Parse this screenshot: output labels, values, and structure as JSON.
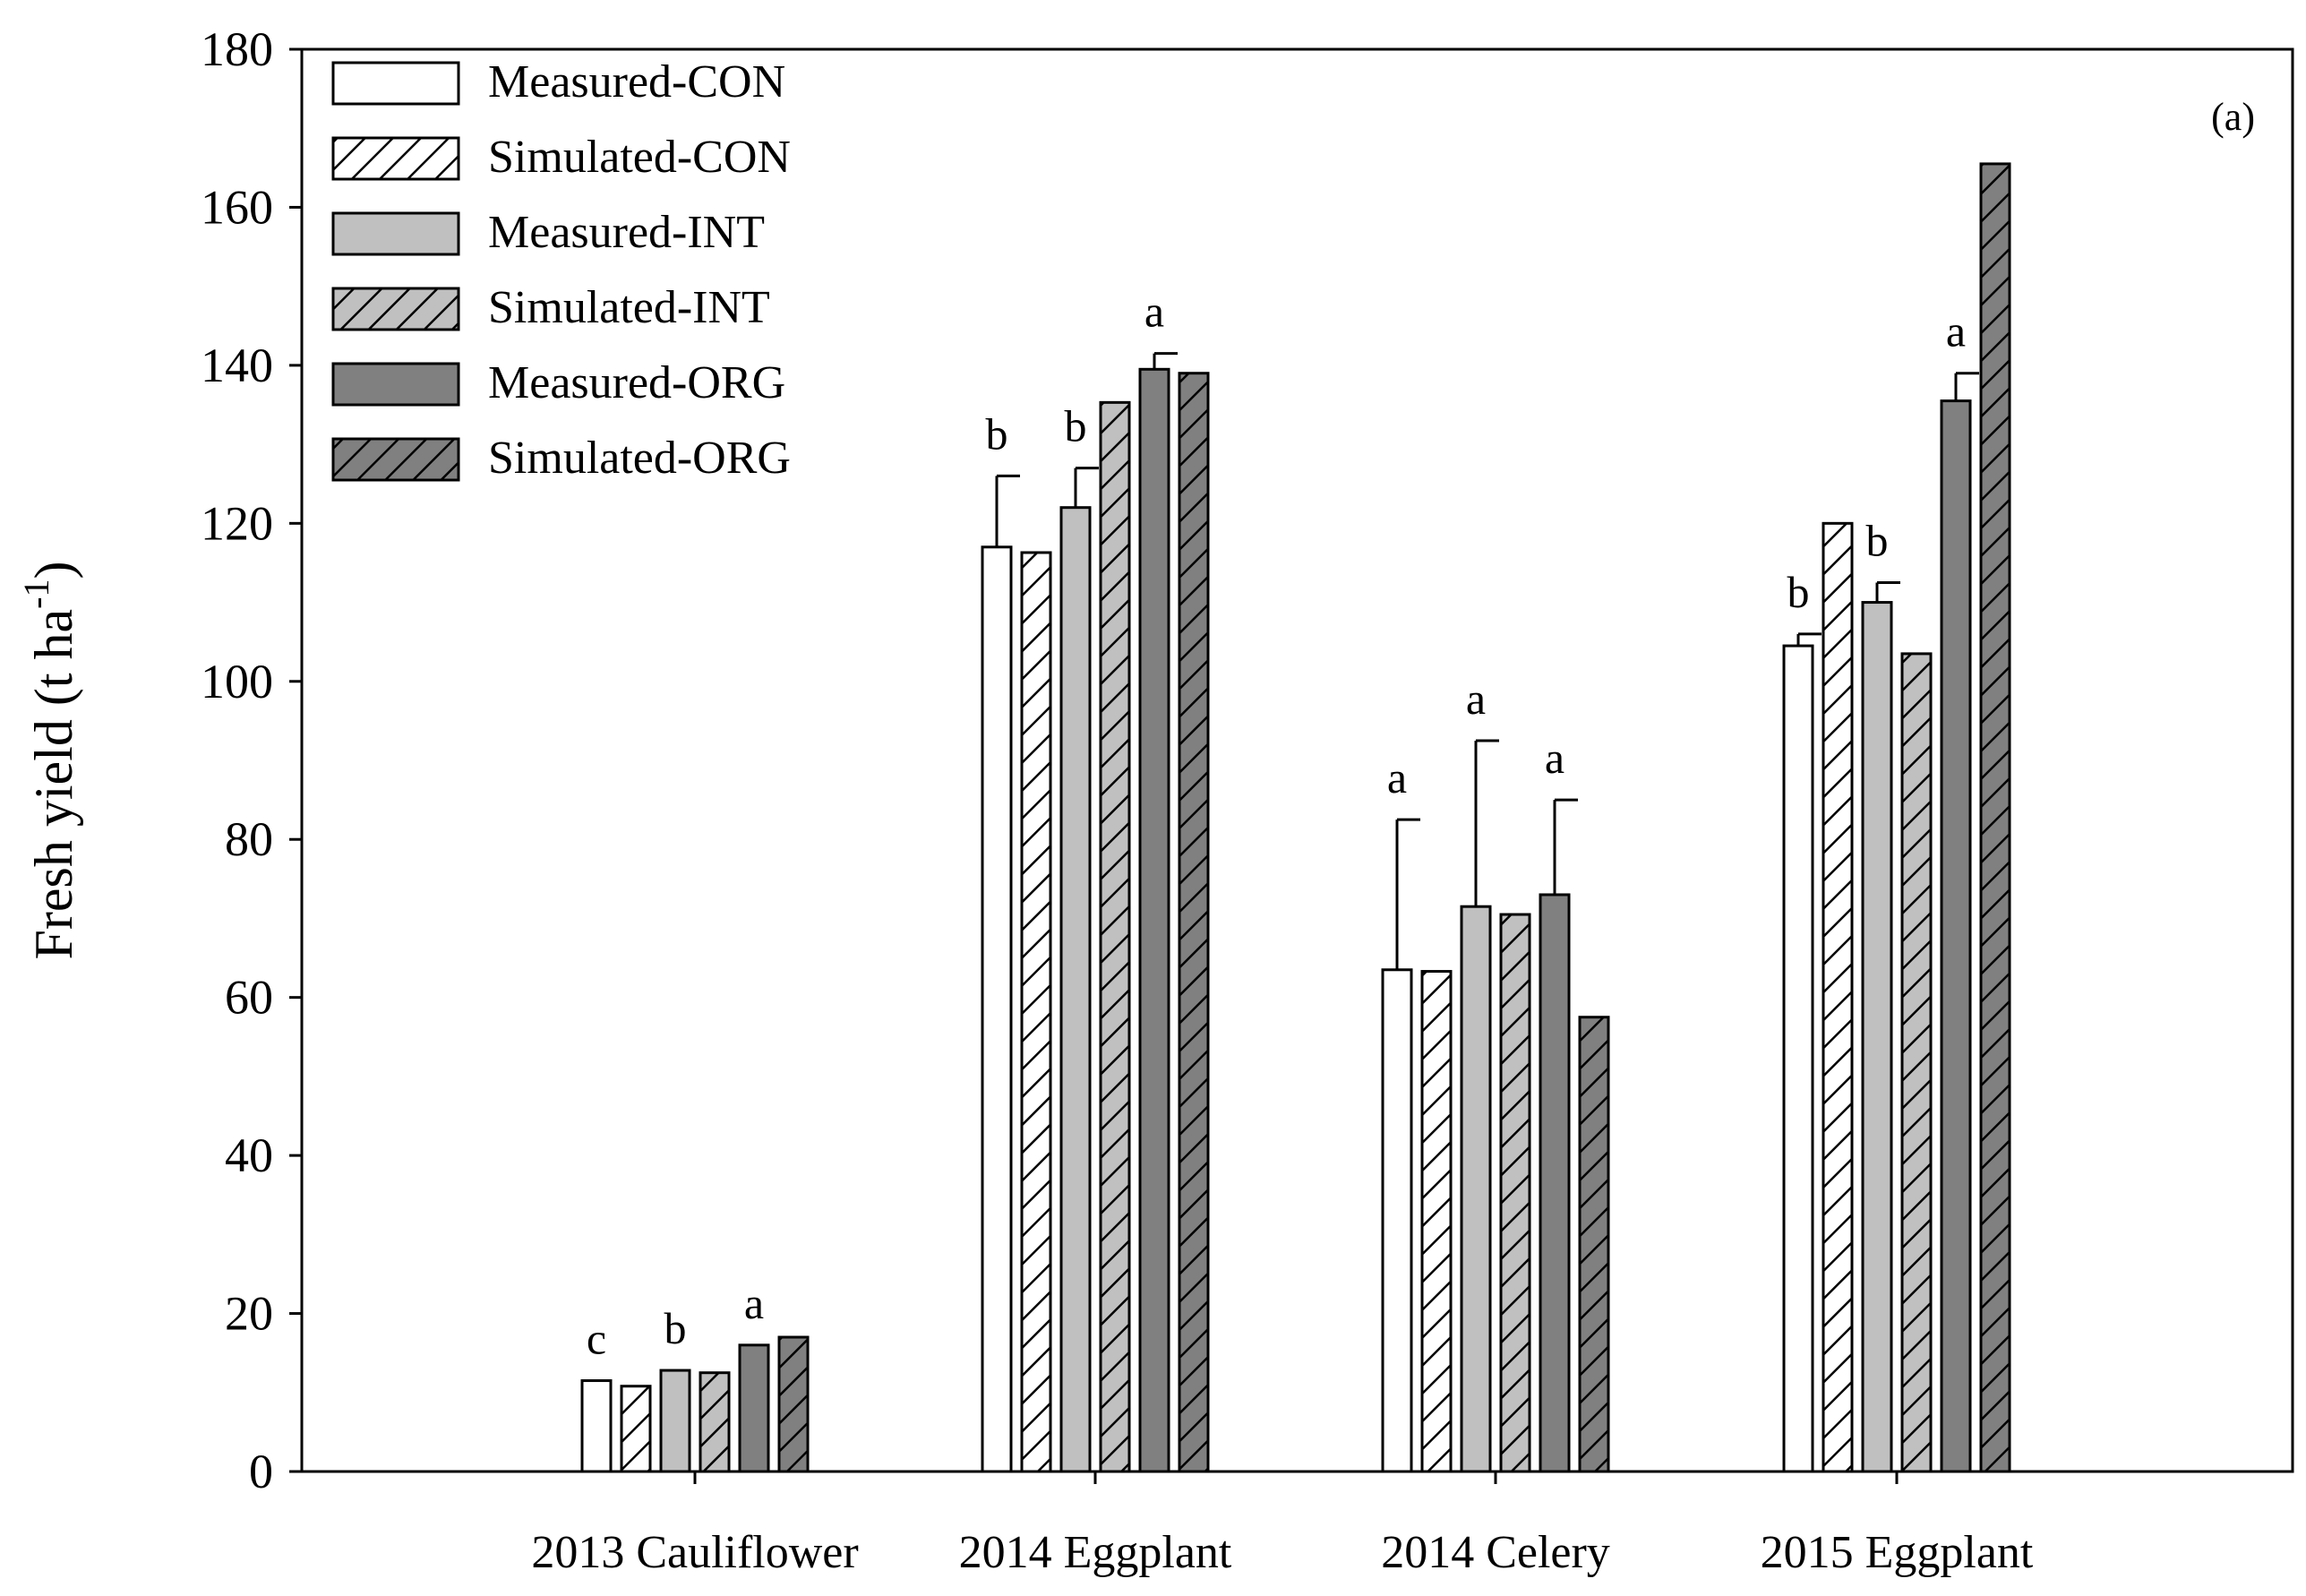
{
  "chart_data": {
    "type": "bar",
    "panel_label": "(a)",
    "ylabel_main": "Fresh yield (t ha",
    "ylabel_sup": "-1",
    "ylabel_close": ")",
    "ylim": [
      0,
      180
    ],
    "yticks": [
      "0",
      "20",
      "40",
      "60",
      "80",
      "100",
      "120",
      "140",
      "160",
      "180"
    ],
    "grid": false,
    "legend_position": "top-left",
    "categories": [
      "2013 Cauliflower",
      "2014 Eggplant",
      "2014 Celery",
      "2015 Eggplant"
    ],
    "series": [
      {
        "name": "Measured-CON",
        "style": "solid",
        "fill": "#ffffff",
        "values": [
          11.5,
          117,
          63.5,
          104.5
        ],
        "errors": [
          0,
          9,
          19,
          1.5
        ]
      },
      {
        "name": "Simulated-CON",
        "style": "hatched",
        "fill": "#ffffff",
        "values": [
          10.8,
          116.3,
          63.3,
          120
        ]
      },
      {
        "name": "Measured-INT",
        "style": "solid",
        "fill": "#c0c0c0",
        "values": [
          12.8,
          122,
          71.5,
          110
        ],
        "errors": [
          0,
          5,
          21,
          2.5
        ]
      },
      {
        "name": "Simulated-INT",
        "style": "hatched",
        "fill": "#c0c0c0",
        "values": [
          12.5,
          135.3,
          70.5,
          103.5
        ]
      },
      {
        "name": "Measured-ORG",
        "style": "solid",
        "fill": "#808080",
        "values": [
          16,
          139.5,
          73,
          135.5
        ],
        "errors": [
          0,
          2,
          12,
          3.5
        ]
      },
      {
        "name": "Simulated-ORG",
        "style": "hatched",
        "fill": "#808080",
        "values": [
          17,
          139,
          57.5,
          165.5
        ]
      }
    ],
    "significance_letters": [
      [
        "c",
        "b",
        "a"
      ],
      [
        "b",
        "b",
        "a"
      ],
      [
        "a",
        "a",
        "a"
      ],
      [
        "b",
        "b",
        "a"
      ]
    ]
  }
}
